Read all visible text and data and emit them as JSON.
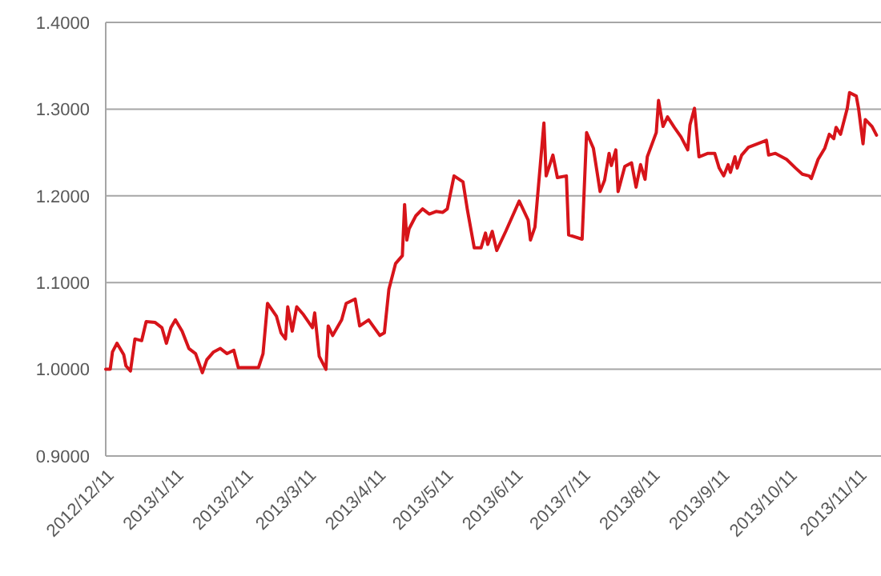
{
  "chart_data": {
    "type": "line",
    "grid": "y",
    "xlim": [
      "2012-12-11",
      "2013-11-21"
    ],
    "ylim": [
      0.9,
      1.4
    ],
    "yticks": [
      {
        "value": 0.9,
        "label": "0.9000"
      },
      {
        "value": 1.0,
        "label": "1.0000"
      },
      {
        "value": 1.1,
        "label": "1.1000"
      },
      {
        "value": 1.2,
        "label": "1.2000"
      },
      {
        "value": 1.3,
        "label": "1.3000"
      },
      {
        "value": 1.4,
        "label": "1.4000"
      }
    ],
    "xticks": [
      {
        "value": "2012-12-11",
        "label": "2012/12/11"
      },
      {
        "value": "2013-01-11",
        "label": "2013/1/11"
      },
      {
        "value": "2013-02-11",
        "label": "2013/2/11"
      },
      {
        "value": "2013-03-11",
        "label": "2013/3/11"
      },
      {
        "value": "2013-04-11",
        "label": "2013/4/11"
      },
      {
        "value": "2013-05-11",
        "label": "2013/5/11"
      },
      {
        "value": "2013-06-11",
        "label": "2013/6/11"
      },
      {
        "value": "2013-07-11",
        "label": "2013/7/11"
      },
      {
        "value": "2013-08-11",
        "label": "2013/8/11"
      },
      {
        "value": "2013-09-11",
        "label": "2013/9/11"
      },
      {
        "value": "2013-10-11",
        "label": "2013/10/11"
      },
      {
        "value": "2013-11-11",
        "label": "2013/11/11"
      }
    ],
    "x": [
      "2012-12-11",
      "2012-12-13",
      "2012-12-14",
      "2012-12-16",
      "2012-12-19",
      "2012-12-20",
      "2012-12-22",
      "2012-12-24",
      "2012-12-27",
      "2012-12-29",
      "2013-01-02",
      "2013-01-05",
      "2013-01-07",
      "2013-01-09",
      "2013-01-11",
      "2013-01-14",
      "2013-01-17",
      "2013-01-20",
      "2013-01-23",
      "2013-01-25",
      "2013-01-28",
      "2013-01-31",
      "2013-02-03",
      "2013-02-06",
      "2013-02-08",
      "2013-02-17",
      "2013-02-19",
      "2013-02-21",
      "2013-02-25",
      "2013-02-27",
      "2013-03-01",
      "2013-03-02",
      "2013-03-04",
      "2013-03-06",
      "2013-03-09",
      "2013-03-13",
      "2013-03-14",
      "2013-03-16",
      "2013-03-19",
      "2013-03-20",
      "2013-03-22",
      "2013-03-26",
      "2013-03-28",
      "2013-04-01",
      "2013-04-03",
      "2013-04-07",
      "2013-04-12",
      "2013-04-14",
      "2013-04-16",
      "2013-04-19",
      "2013-04-22",
      "2013-04-23",
      "2013-04-24",
      "2013-04-25",
      "2013-04-28",
      "2013-05-01",
      "2013-05-04",
      "2013-05-07",
      "2013-05-10",
      "2013-05-12",
      "2013-05-15",
      "2013-05-19",
      "2013-05-21",
      "2013-05-24",
      "2013-05-27",
      "2013-05-29",
      "2013-05-30",
      "2013-06-01",
      "2013-06-03",
      "2013-06-07",
      "2013-06-13",
      "2013-06-17",
      "2013-06-18",
      "2013-06-20",
      "2013-06-24",
      "2013-06-25",
      "2013-06-28",
      "2013-06-30",
      "2013-07-04",
      "2013-07-05",
      "2013-07-11",
      "2013-07-13",
      "2013-07-16",
      "2013-07-19",
      "2013-07-21",
      "2013-07-23",
      "2013-07-24",
      "2013-07-26",
      "2013-07-27",
      "2013-07-30",
      "2013-08-02",
      "2013-08-04",
      "2013-08-06",
      "2013-08-08",
      "2013-08-09",
      "2013-08-13",
      "2013-08-14",
      "2013-08-16",
      "2013-08-18",
      "2013-08-21",
      "2013-08-24",
      "2013-08-27",
      "2013-08-28",
      "2013-08-30",
      "2013-09-01",
      "2013-09-05",
      "2013-09-08",
      "2013-09-10",
      "2013-09-12",
      "2013-09-14",
      "2013-09-15",
      "2013-09-17",
      "2013-09-18",
      "2013-09-20",
      "2013-09-23",
      "2013-09-29",
      "2013-10-01",
      "2013-10-02",
      "2013-10-05",
      "2013-10-10",
      "2013-10-14",
      "2013-10-17",
      "2013-10-20",
      "2013-10-21",
      "2013-10-24",
      "2013-10-27",
      "2013-10-29",
      "2013-10-31",
      "2013-11-01",
      "2013-11-03",
      "2013-11-06",
      "2013-11-07",
      "2013-11-10",
      "2013-11-11",
      "2013-11-13",
      "2013-11-14",
      "2013-11-17",
      "2013-11-19"
    ],
    "series": [
      {
        "color": "#d7141a",
        "values": [
          1.0,
          1.0,
          1.02,
          1.03,
          1.017,
          1.004,
          0.998,
          1.035,
          1.033,
          1.055,
          1.054,
          1.048,
          1.03,
          1.048,
          1.057,
          1.044,
          1.024,
          1.018,
          0.996,
          1.011,
          1.02,
          1.024,
          1.018,
          1.022,
          1.002,
          1.002,
          1.018,
          1.076,
          1.061,
          1.042,
          1.035,
          1.072,
          1.044,
          1.072,
          1.063,
          1.048,
          1.065,
          1.015,
          1.0,
          1.05,
          1.039,
          1.057,
          1.076,
          1.081,
          1.05,
          1.057,
          1.039,
          1.042,
          1.092,
          1.122,
          1.131,
          1.19,
          1.149,
          1.162,
          1.177,
          1.185,
          1.179,
          1.182,
          1.181,
          1.185,
          1.223,
          1.216,
          1.183,
          1.14,
          1.14,
          1.157,
          1.144,
          1.159,
          1.137,
          1.159,
          1.194,
          1.172,
          1.149,
          1.164,
          1.284,
          1.223,
          1.247,
          1.221,
          1.223,
          1.155,
          1.15,
          1.273,
          1.255,
          1.205,
          1.218,
          1.249,
          1.235,
          1.253,
          1.205,
          1.234,
          1.238,
          1.21,
          1.236,
          1.219,
          1.245,
          1.273,
          1.31,
          1.28,
          1.291,
          1.279,
          1.268,
          1.253,
          1.282,
          1.301,
          1.245,
          1.249,
          1.249,
          1.232,
          1.223,
          1.236,
          1.227,
          1.245,
          1.232,
          1.247,
          1.256,
          1.262,
          1.264,
          1.247,
          1.249,
          1.242,
          1.232,
          1.225,
          1.223,
          1.22,
          1.242,
          1.255,
          1.271,
          1.266,
          1.279,
          1.271,
          1.301,
          1.319,
          1.315,
          1.301,
          1.26,
          1.288,
          1.28,
          1.27
        ]
      }
    ]
  }
}
